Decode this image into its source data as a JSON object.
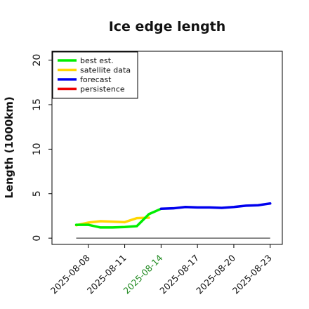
{
  "chart_data": {
    "type": "line",
    "title": "Ice edge length",
    "xlabel": "",
    "ylabel": "Length (1000km)",
    "ylim": [
      -0.7,
      21.0
    ],
    "xlim": [
      "2025-08-05",
      "2025-08-24"
    ],
    "yticks": [
      0,
      5,
      10,
      15,
      20
    ],
    "xticks": [
      "2025-08-08",
      "2025-08-11",
      "2025-08-14",
      "2025-08-17",
      "2025-08-20",
      "2025-08-23"
    ],
    "highlight_tick": "2025-08-14",
    "highlight_color": "#228b22",
    "legend_position": "top-left",
    "series": [
      {
        "name": "best est.",
        "color": "#00ee00",
        "x": [
          "2025-08-07",
          "2025-08-08",
          "2025-08-09",
          "2025-08-10",
          "2025-08-11",
          "2025-08-12",
          "2025-08-13",
          "2025-08-14"
        ],
        "y": [
          1.5,
          1.5,
          1.2,
          1.2,
          1.25,
          1.35,
          2.7,
          3.3
        ]
      },
      {
        "name": "satellite data",
        "color": "#ffd700",
        "x": [
          "2025-08-07",
          "2025-08-08",
          "2025-08-09",
          "2025-08-10",
          "2025-08-11",
          "2025-08-12",
          "2025-08-13"
        ],
        "y": [
          1.45,
          1.75,
          1.9,
          1.85,
          1.8,
          2.25,
          2.3
        ]
      },
      {
        "name": "forecast",
        "color": "#0000ee",
        "x": [
          "2025-08-14",
          "2025-08-15",
          "2025-08-16",
          "2025-08-17",
          "2025-08-18",
          "2025-08-19",
          "2025-08-20",
          "2025-08-21",
          "2025-08-22",
          "2025-08-23"
        ],
        "y": [
          3.3,
          3.35,
          3.5,
          3.45,
          3.45,
          3.4,
          3.5,
          3.65,
          3.7,
          3.9
        ]
      },
      {
        "name": "persistence",
        "color": "#ee0000",
        "x": [],
        "y": []
      }
    ],
    "baseline": {
      "color": "#666666",
      "x": [
        "2025-08-07",
        "2025-08-23"
      ],
      "y": [
        0,
        0
      ]
    }
  }
}
